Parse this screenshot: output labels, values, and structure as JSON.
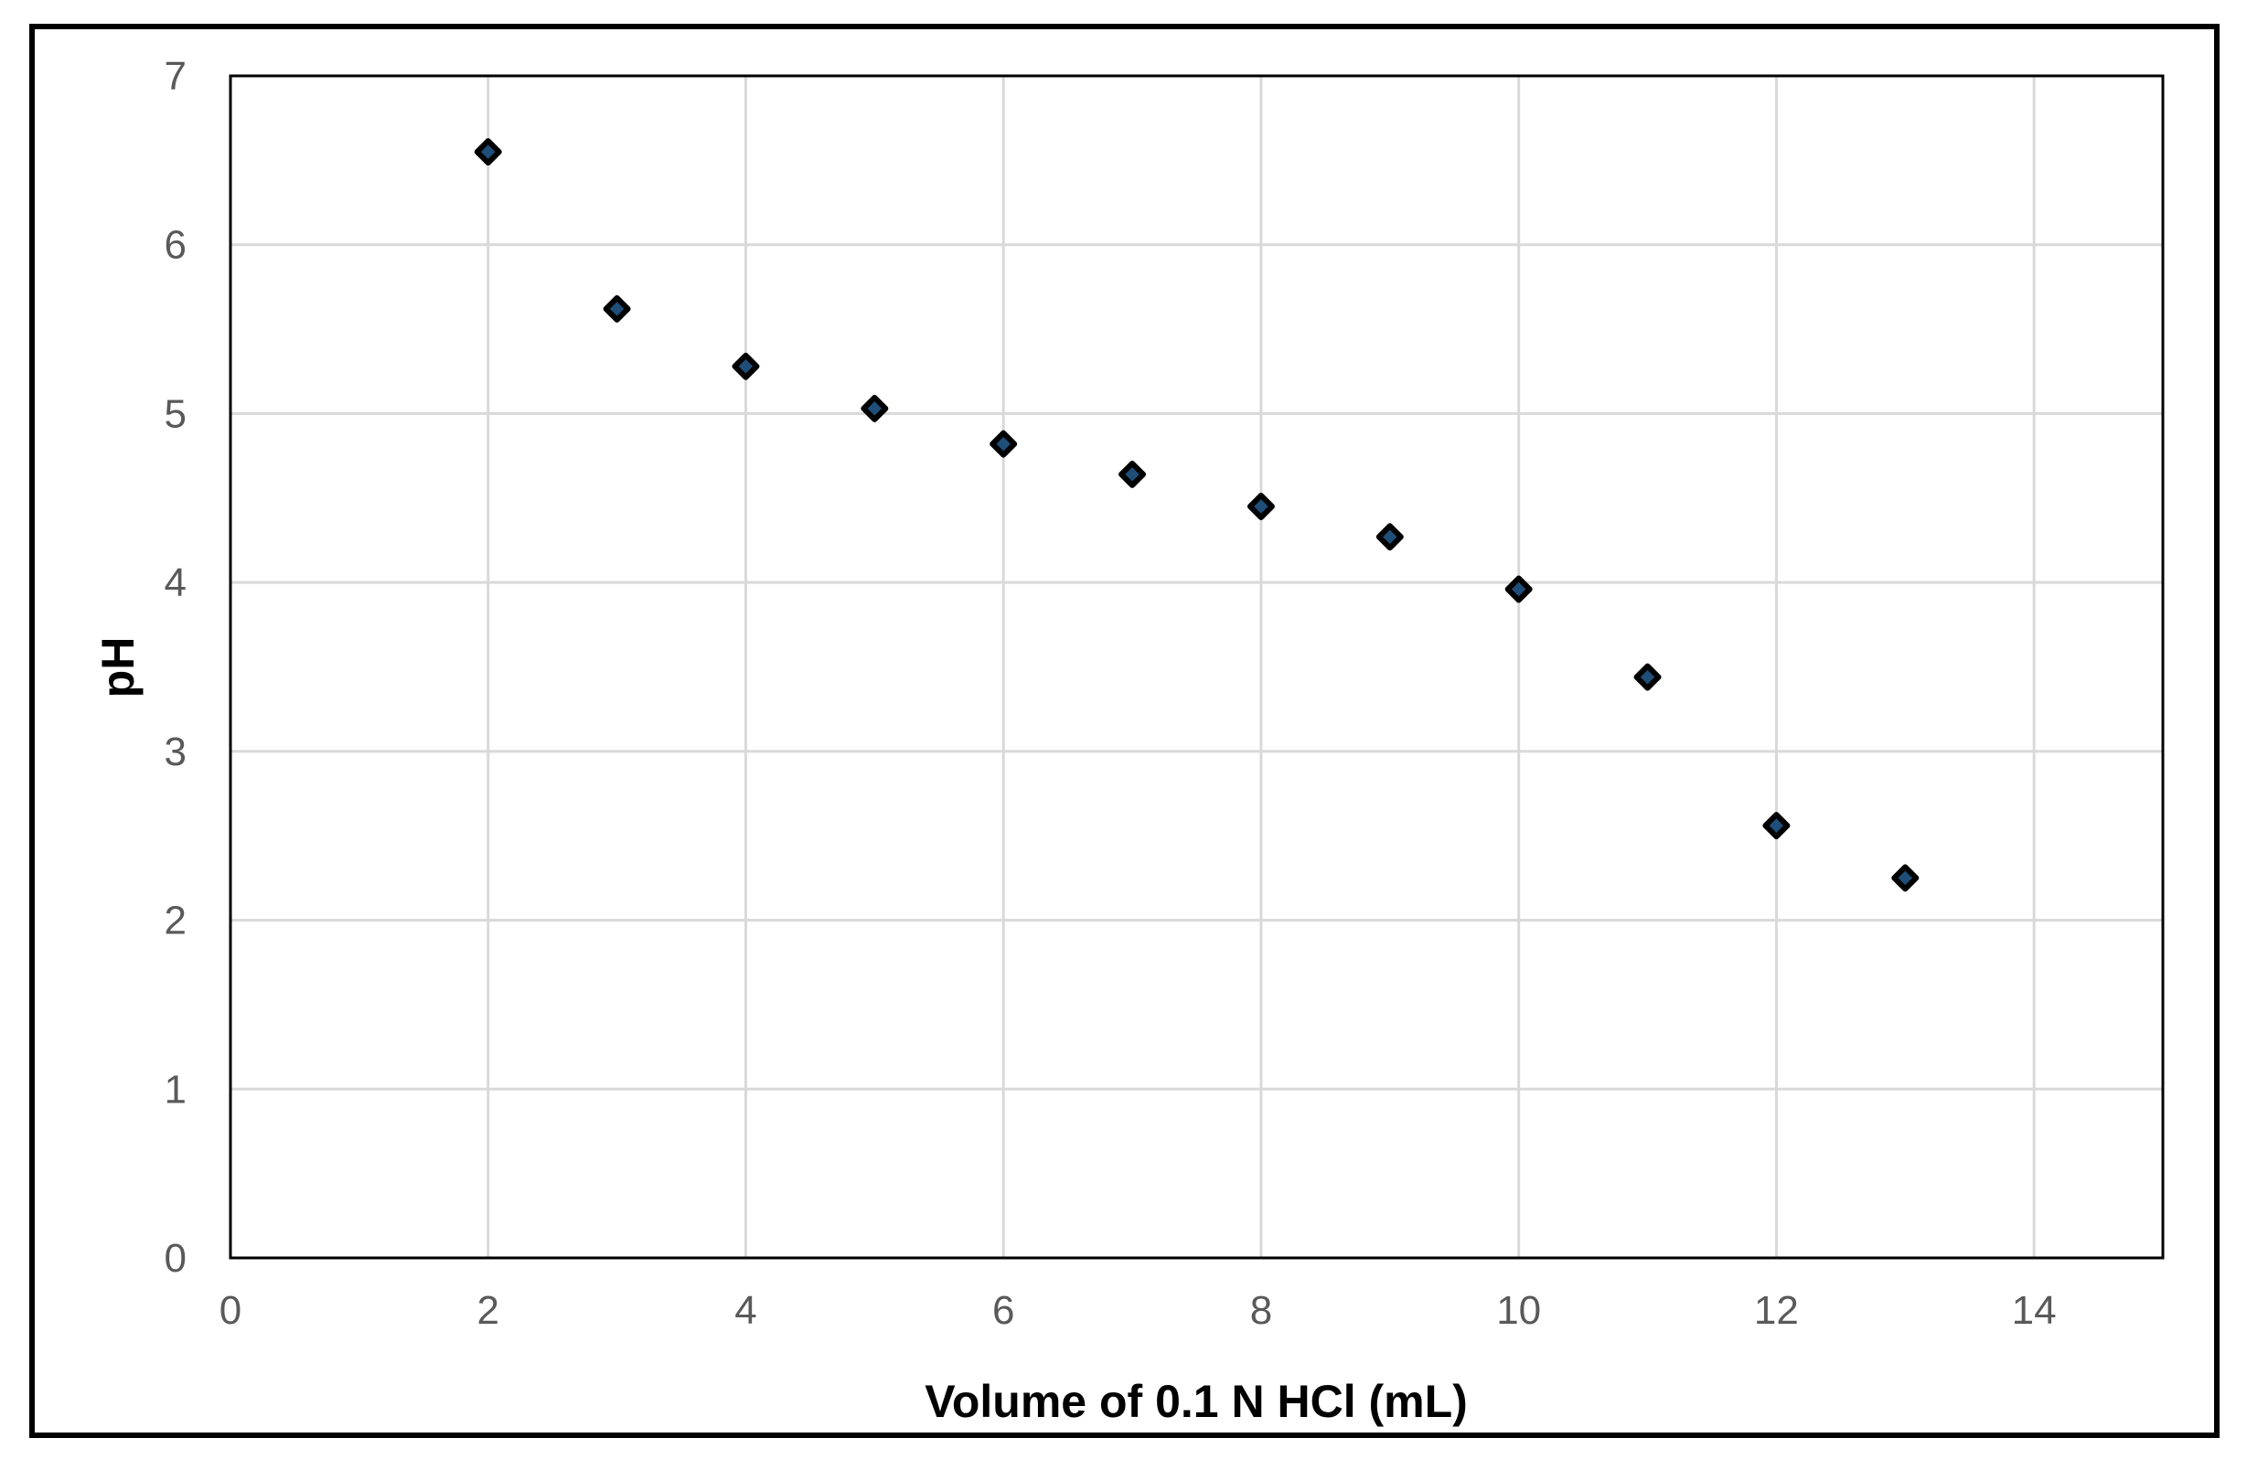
{
  "chart_data": {
    "type": "scatter",
    "title": "",
    "xlabel": "Volume of 0.1 N HCl (mL)",
    "ylabel": "pH",
    "xlim": [
      0,
      15
    ],
    "ylim": [
      0,
      7
    ],
    "x_ticks": [
      0,
      2,
      4,
      6,
      8,
      10,
      12,
      14
    ],
    "y_ticks": [
      0,
      1,
      2,
      3,
      4,
      5,
      6,
      7
    ],
    "grid": true,
    "legend": "none",
    "series": [
      {
        "marker": "diamond",
        "color": "#000000",
        "points": [
          {
            "x": 2,
            "y": 6.55
          },
          {
            "x": 3,
            "y": 5.62
          },
          {
            "x": 4,
            "y": 5.28
          },
          {
            "x": 5,
            "y": 5.03
          },
          {
            "x": 6,
            "y": 4.82
          },
          {
            "x": 7,
            "y": 4.64
          },
          {
            "x": 8,
            "y": 4.45
          },
          {
            "x": 9,
            "y": 4.27
          },
          {
            "x": 10,
            "y": 3.96
          },
          {
            "x": 11,
            "y": 3.44
          },
          {
            "x": 12,
            "y": 2.56
          },
          {
            "x": 13,
            "y": 2.25
          }
        ]
      }
    ],
    "colors": {
      "grid": "#d9d9d9",
      "axis": "#000000",
      "frame": "#000000",
      "marker_fill": "#1f4e79",
      "marker_stroke": "#000000"
    }
  }
}
